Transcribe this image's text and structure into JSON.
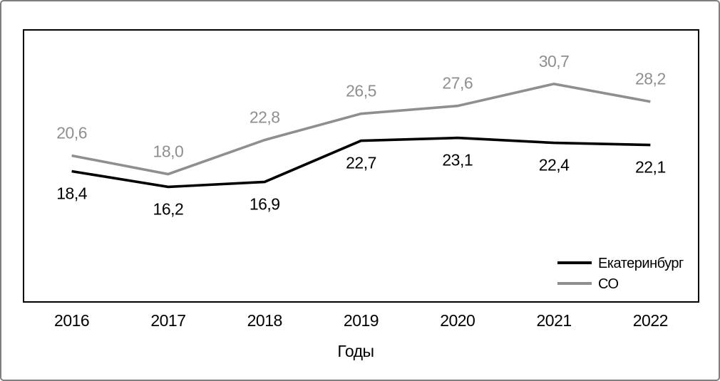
{
  "frame": {
    "background": "#ffffff",
    "outer_border_color": "#7f7f7f",
    "plot_border_color": "#000000"
  },
  "chart_data": {
    "type": "line",
    "title": "",
    "xlabel": "Годы",
    "ylabel": "",
    "x": [
      "2016",
      "2017",
      "2018",
      "2019",
      "2020",
      "2021",
      "2022"
    ],
    "ylim": [
      0,
      38.3
    ],
    "grid": false,
    "legend_position": "inside-bottom-right",
    "series": [
      {
        "name": "Екатеринбург",
        "color": "#000000",
        "values": [
          18.4,
          16.2,
          16.9,
          22.7,
          23.1,
          22.4,
          22.1
        ],
        "labels": [
          "18,4",
          "16,2",
          "16,9",
          "22,7",
          "23,1",
          "22,4",
          "22,1"
        ],
        "label_placement": "below"
      },
      {
        "name": "СО",
        "color": "#8f8f8f",
        "values": [
          20.6,
          18.0,
          22.8,
          26.5,
          27.6,
          30.7,
          28.2
        ],
        "labels": [
          "20,6",
          "18,0",
          "22,8",
          "26,5",
          "27,6",
          "30,7",
          "28,2"
        ],
        "label_placement": "above"
      }
    ]
  }
}
